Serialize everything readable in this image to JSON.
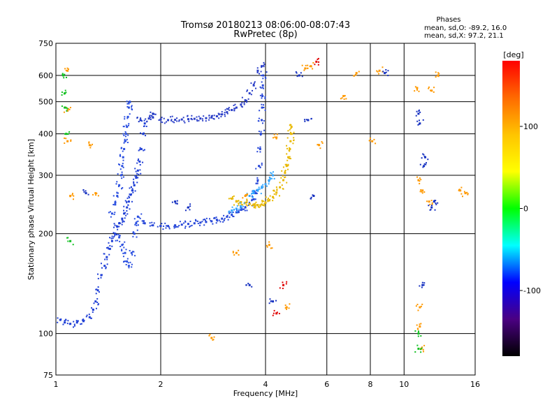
{
  "chart_data": {
    "type": "scatter",
    "title": "Tromsø 20180213 08:06:00-08:07:43",
    "subtitle": "RwPretec (8p)",
    "xlabel": "Frequency [MHz]",
    "ylabel": "Stationary phase Virtual Height [km]",
    "x_scale": "log",
    "y_scale": "log",
    "xlim": [
      1,
      16
    ],
    "ylim": [
      75,
      750
    ],
    "x_ticks": [
      1,
      2,
      4,
      6,
      8,
      10,
      16
    ],
    "y_ticks": [
      75,
      100,
      200,
      300,
      400,
      500,
      600,
      750
    ],
    "grid": true,
    "phase_info": {
      "heading": "Phases",
      "line1": "mean, sd,O: -89.2, 16.0",
      "line2": "mean, sd,X:  97.2, 21.1"
    },
    "colorbar": {
      "label": "[deg]",
      "range": [
        -180,
        180
      ],
      "ticks": [
        100,
        0,
        -100
      ],
      "gradient": [
        "#ff0000",
        "#ff6a00",
        "#ffc400",
        "#ffff00",
        "#00ff00",
        "#00ffff",
        "#0000ff",
        "#4b0082",
        "#000000"
      ]
    },
    "series": [
      {
        "key": "lower_ramp",
        "color": "#1f3fd6",
        "points": [
          [
            1.03,
            110
          ],
          [
            1.06,
            108
          ],
          [
            1.1,
            107
          ],
          [
            1.15,
            108
          ],
          [
            1.2,
            109
          ],
          [
            1.25,
            112
          ],
          [
            1.28,
            118
          ],
          [
            1.3,
            125
          ],
          [
            1.32,
            135
          ],
          [
            1.35,
            150
          ],
          [
            1.38,
            160
          ],
          [
            1.4,
            170
          ],
          [
            1.43,
            180
          ],
          [
            1.45,
            190
          ],
          [
            1.48,
            200
          ],
          [
            1.5,
            210
          ],
          [
            1.52,
            215
          ],
          [
            1.55,
            222
          ],
          [
            1.57,
            230
          ],
          [
            1.6,
            240
          ],
          [
            1.62,
            250
          ],
          [
            1.64,
            262
          ],
          [
            1.66,
            270
          ],
          [
            1.68,
            280
          ],
          [
            1.7,
            295
          ],
          [
            1.72,
            310
          ],
          [
            1.74,
            330
          ],
          [
            1.76,
            360
          ],
          [
            1.78,
            400
          ],
          [
            1.8,
            430
          ]
        ]
      },
      {
        "key": "e_region_cluster",
        "color": "#2a4fe0",
        "points": [
          [
            1.45,
            230
          ],
          [
            1.48,
            245
          ],
          [
            1.5,
            260
          ],
          [
            1.52,
            280
          ],
          [
            1.54,
            300
          ],
          [
            1.55,
            320
          ],
          [
            1.56,
            340
          ],
          [
            1.57,
            360
          ],
          [
            1.58,
            380
          ],
          [
            1.59,
            400
          ],
          [
            1.6,
            420
          ],
          [
            1.61,
            450
          ],
          [
            1.62,
            480
          ],
          [
            1.63,
            500
          ],
          [
            1.52,
            195
          ],
          [
            1.55,
            185
          ],
          [
            1.58,
            175
          ],
          [
            1.6,
            165
          ],
          [
            1.62,
            160
          ],
          [
            1.65,
            175
          ],
          [
            1.68,
            200
          ],
          [
            1.7,
            215
          ],
          [
            1.72,
            225
          ]
        ]
      },
      {
        "key": "f_o_mode_lower",
        "color": "#2646d8",
        "points": [
          [
            1.8,
            215
          ],
          [
            1.9,
            212
          ],
          [
            2.0,
            211
          ],
          [
            2.1,
            211
          ],
          [
            2.2,
            212
          ],
          [
            2.3,
            213
          ],
          [
            2.4,
            214
          ],
          [
            2.5,
            215
          ],
          [
            2.6,
            216
          ],
          [
            2.7,
            217
          ],
          [
            2.8,
            218
          ],
          [
            2.9,
            220
          ],
          [
            3.0,
            222
          ],
          [
            3.1,
            225
          ],
          [
            3.2,
            228
          ],
          [
            3.3,
            232
          ],
          [
            3.4,
            236
          ],
          [
            3.5,
            240
          ],
          [
            3.6,
            246
          ],
          [
            3.7,
            254
          ],
          [
            3.75,
            265
          ],
          [
            3.8,
            290
          ],
          [
            3.83,
            320
          ],
          [
            3.86,
            360
          ],
          [
            3.88,
            400
          ],
          [
            3.9,
            440
          ],
          [
            3.91,
            480
          ],
          [
            3.92,
            520
          ],
          [
            3.93,
            560
          ],
          [
            3.94,
            600
          ]
        ]
      },
      {
        "key": "f_o_mode_upper",
        "color": "#2b3fc8",
        "points": [
          [
            1.85,
            445
          ],
          [
            1.9,
            448
          ],
          [
            2.0,
            442
          ],
          [
            2.1,
            440
          ],
          [
            2.2,
            441
          ],
          [
            2.3,
            442
          ],
          [
            2.4,
            443
          ],
          [
            2.5,
            444
          ],
          [
            2.6,
            445
          ],
          [
            2.7,
            446
          ],
          [
            2.8,
            448
          ],
          [
            2.9,
            452
          ],
          [
            3.0,
            458
          ],
          [
            3.1,
            465
          ],
          [
            3.2,
            472
          ],
          [
            3.3,
            480
          ],
          [
            3.4,
            490
          ],
          [
            3.5,
            505
          ],
          [
            3.6,
            530
          ],
          [
            3.7,
            560
          ],
          [
            3.8,
            620
          ],
          [
            3.9,
            640
          ]
        ]
      },
      {
        "key": "f_x_mode",
        "color": "#e8b800",
        "points": [
          [
            3.5,
            248
          ],
          [
            3.6,
            246
          ],
          [
            3.7,
            245
          ],
          [
            3.8,
            244
          ],
          [
            3.9,
            245
          ],
          [
            4.0,
            248
          ],
          [
            4.1,
            252
          ],
          [
            4.2,
            258
          ],
          [
            4.3,
            266
          ],
          [
            4.4,
            276
          ],
          [
            4.5,
            290
          ],
          [
            4.55,
            305
          ],
          [
            4.6,
            320
          ],
          [
            4.65,
            340
          ],
          [
            4.7,
            360
          ],
          [
            4.72,
            380
          ],
          [
            4.74,
            400
          ],
          [
            4.75,
            420
          ],
          [
            3.2,
            255
          ],
          [
            3.3,
            250
          ],
          [
            3.4,
            249
          ]
        ]
      },
      {
        "key": "x_mode_secondary",
        "color": "#33a6ff",
        "points": [
          [
            3.6,
            260
          ],
          [
            3.7,
            265
          ],
          [
            3.8,
            270
          ],
          [
            3.9,
            275
          ],
          [
            4.0,
            282
          ],
          [
            4.1,
            290
          ],
          [
            4.2,
            300
          ],
          [
            3.2,
            235
          ],
          [
            3.3,
            238
          ],
          [
            3.4,
            242
          ]
        ]
      },
      {
        "key": "scattered_noise",
        "color": "#ff9900",
        "points": [
          [
            1.08,
            620
          ],
          [
            1.08,
            470
          ],
          [
            1.08,
            380
          ],
          [
            1.1,
            260
          ],
          [
            1.25,
            370
          ],
          [
            1.3,
            265
          ],
          [
            2.8,
            97
          ],
          [
            3.3,
            175
          ],
          [
            3.5,
            260
          ],
          [
            4.1,
            185
          ],
          [
            4.3,
            390
          ],
          [
            4.6,
            120
          ],
          [
            5.2,
            630
          ],
          [
            5.4,
            640
          ],
          [
            5.7,
            370
          ],
          [
            6.7,
            520
          ],
          [
            7.3,
            610
          ],
          [
            8.1,
            380
          ],
          [
            8.5,
            620
          ],
          [
            10.9,
            550
          ],
          [
            11.0,
            290
          ],
          [
            11.1,
            120
          ],
          [
            11.1,
            105
          ],
          [
            11.2,
            90
          ],
          [
            11.3,
            270
          ],
          [
            11.8,
            250
          ],
          [
            12.0,
            540
          ],
          [
            12.5,
            600
          ],
          [
            14.5,
            270
          ],
          [
            15.0,
            265
          ]
        ]
      },
      {
        "key": "scattered_blue",
        "color": "#1530c0",
        "points": [
          [
            1.22,
            265
          ],
          [
            1.75,
            440
          ],
          [
            1.9,
            460
          ],
          [
            2.2,
            250
          ],
          [
            2.4,
            240
          ],
          [
            3.6,
            140
          ],
          [
            4.2,
            125
          ],
          [
            5.0,
            600
          ],
          [
            5.3,
            440
          ],
          [
            5.5,
            260
          ],
          [
            8.8,
            610
          ],
          [
            11.1,
            430
          ],
          [
            11.5,
            340
          ],
          [
            11.4,
            320
          ],
          [
            12.2,
            250
          ],
          [
            11.0,
            460
          ],
          [
            11.3,
            140
          ],
          [
            12.0,
            240
          ]
        ]
      },
      {
        "key": "scattered_green",
        "color": "#10c020",
        "points": [
          [
            1.06,
            480
          ],
          [
            1.07,
            400
          ],
          [
            1.05,
            600
          ],
          [
            1.06,
            530
          ],
          [
            11.0,
            90
          ],
          [
            11.0,
            100
          ],
          [
            1.1,
            190
          ]
        ]
      },
      {
        "key": "scattered_red",
        "color": "#e00000",
        "points": [
          [
            5.6,
            660
          ],
          [
            4.5,
            140
          ],
          [
            4.3,
            115
          ]
        ]
      }
    ]
  }
}
